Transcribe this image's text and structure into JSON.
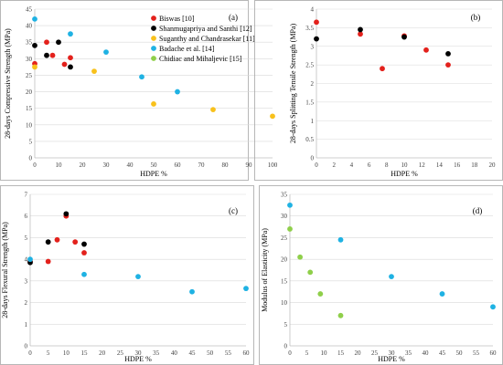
{
  "colors": {
    "Biswas": "#e3211c",
    "Shanmugapriya": "#000000",
    "Suganthy": "#f8c11c",
    "Badache": "#1fb2e3",
    "Chidiac": "#8fcf4a"
  },
  "chart_data": [
    {
      "type": "scatter",
      "panel": "(a)",
      "xlabel": "HDPE %",
      "ylabel": "28-days Compressive Strength (MPa)",
      "xlim": [
        0,
        100
      ],
      "ylim": [
        0,
        45
      ],
      "xticks": [
        0,
        10,
        20,
        30,
        40,
        50,
        60,
        70,
        80,
        90,
        100
      ],
      "yticks": [
        0,
        5,
        10,
        15,
        20,
        25,
        30,
        35,
        40,
        45
      ],
      "grid": "horizontal",
      "legend": "top-right",
      "series": [
        {
          "name": "Biswas [10]",
          "color_key": "Biswas",
          "points": [
            [
              0,
              28.5
            ],
            [
              5,
              35
            ],
            [
              7.5,
              31
            ],
            [
              12.5,
              28.3
            ],
            [
              15,
              30.3
            ]
          ]
        },
        {
          "name": "Shanmugapriya and  Santhi [12]",
          "color_key": "Shanmugapriya",
          "points": [
            [
              0,
              34
            ],
            [
              5,
              31
            ],
            [
              10,
              35
            ],
            [
              15,
              27.5
            ]
          ]
        },
        {
          "name": "Suganthy and Chandrasekar [11]",
          "color_key": "Suganthy",
          "points": [
            [
              0,
              27.5
            ],
            [
              25,
              26.2
            ],
            [
              50,
              16.3
            ],
            [
              75,
              14.6
            ],
            [
              100,
              12.6
            ]
          ]
        },
        {
          "name": "Badache et al. [14]",
          "color_key": "Badache",
          "points": [
            [
              0,
              42
            ],
            [
              15,
              37.5
            ],
            [
              30,
              32
            ],
            [
              45,
              24.5
            ],
            [
              60,
              20
            ]
          ]
        },
        {
          "name": "Chidiac  and Mihaljevic [15]",
          "color_key": "Chidiac",
          "points": []
        }
      ]
    },
    {
      "type": "scatter",
      "panel": "(b)",
      "xlabel": "HDPE %",
      "ylabel": "28-days Splitting Tensile Strength (MPa)",
      "xlim": [
        0,
        20
      ],
      "ylim": [
        0,
        4
      ],
      "xticks": [
        0,
        2,
        4,
        6,
        8,
        10,
        12,
        14,
        16,
        18,
        20
      ],
      "yticks": [
        0,
        0.5,
        1,
        1.5,
        2,
        2.5,
        3,
        3.5,
        4
      ],
      "grid": "horizontal",
      "series": [
        {
          "name": "Biswas [10]",
          "color_key": "Biswas",
          "points": [
            [
              0,
              3.65
            ],
            [
              5,
              3.33
            ],
            [
              7.5,
              2.4
            ],
            [
              10,
              3.28
            ],
            [
              12.5,
              2.9
            ],
            [
              15,
              2.5
            ]
          ]
        },
        {
          "name": "Shanmugapriya and  Santhi [12]",
          "color_key": "Shanmugapriya",
          "points": [
            [
              0,
              3.2
            ],
            [
              5,
              3.45
            ],
            [
              10,
              3.25
            ],
            [
              15,
              2.8
            ]
          ]
        }
      ]
    },
    {
      "type": "scatter",
      "panel": "(c)",
      "xlabel": "HDPE %",
      "ylabel": "28-days Flexural Strength (MPa)",
      "xlim": [
        0,
        60
      ],
      "ylim": [
        0,
        7
      ],
      "xticks": [
        0,
        5,
        10,
        15,
        20,
        25,
        30,
        35,
        40,
        45,
        50,
        55,
        60
      ],
      "yticks": [
        0,
        1,
        2,
        3,
        4,
        5,
        6,
        7
      ],
      "grid": "horizontal",
      "series": [
        {
          "name": "Biswas [10]",
          "color_key": "Biswas",
          "points": [
            [
              0,
              3.9
            ],
            [
              5,
              3.9
            ],
            [
              7.5,
              4.9
            ],
            [
              10,
              6.0
            ],
            [
              12.5,
              4.8
            ],
            [
              15,
              4.3
            ]
          ]
        },
        {
          "name": "Shanmugapriya and  Santhi [12]",
          "color_key": "Shanmugapriya",
          "points": [
            [
              0,
              3.85
            ],
            [
              5,
              4.8
            ],
            [
              10,
              6.1
            ],
            [
              15,
              4.7
            ]
          ]
        },
        {
          "name": "Badache et al. [14]",
          "color_key": "Badache",
          "points": [
            [
              0,
              4.0
            ],
            [
              15,
              3.3
            ],
            [
              30,
              3.2
            ],
            [
              45,
              2.5
            ],
            [
              60,
              2.65
            ]
          ]
        }
      ]
    },
    {
      "type": "scatter",
      "panel": "(d)",
      "xlabel": "HDPE %",
      "ylabel": "Modulus of Elasticity (MPa)",
      "xlim": [
        0,
        60
      ],
      "ylim": [
        0,
        35
      ],
      "xticks": [
        0,
        5,
        10,
        15,
        20,
        25,
        30,
        35,
        40,
        45,
        50,
        55,
        60
      ],
      "yticks": [
        0,
        5,
        10,
        15,
        20,
        25,
        30,
        35
      ],
      "grid": "horizontal",
      "series": [
        {
          "name": "Badache et al. [14]",
          "color_key": "Badache",
          "points": [
            [
              0,
              32.5
            ],
            [
              15,
              24.5
            ],
            [
              30,
              16
            ],
            [
              45,
              12
            ],
            [
              60,
              9
            ]
          ]
        },
        {
          "name": "Chidiac  and Mihaljevic [15]",
          "color_key": "Chidiac",
          "points": [
            [
              0,
              27
            ],
            [
              3,
              20.5
            ],
            [
              6,
              17
            ],
            [
              9,
              12
            ],
            [
              15,
              7
            ]
          ]
        }
      ]
    }
  ]
}
